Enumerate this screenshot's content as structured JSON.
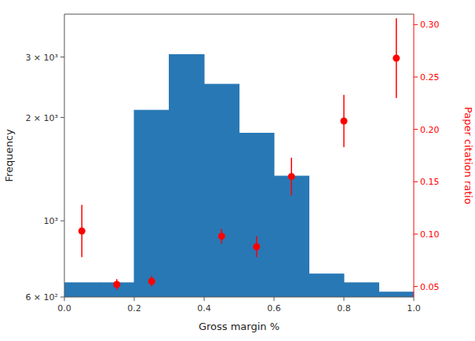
{
  "chart_data": {
    "type": "bar",
    "xlabel": "Gross margin %",
    "ylabel": "Frequency",
    "y2label": "Paper citation ratio",
    "log": "y",
    "grid": false,
    "xlim": [
      0.0,
      1.0
    ],
    "ylim": [
      600,
      4000
    ],
    "y2lim": [
      0.04,
      0.31
    ],
    "xticks": [
      {
        "value": 0.0,
        "label": "0.0"
      },
      0.2,
      0.4,
      0.6,
      0.8,
      {
        "value": 1.0,
        "label": "1.0"
      }
    ],
    "yticks": [
      {
        "value": 600,
        "label": "6 × 10²"
      },
      {
        "value": 1000,
        "label": "10³"
      },
      {
        "value": 2000,
        "label": "2 × 10³"
      },
      {
        "value": 3000,
        "label": "3 × 10³"
      }
    ],
    "y2ticks": [
      0.05,
      {
        "value": 0.1,
        "label": "0.10"
      },
      0.15,
      {
        "value": 0.2,
        "label": "0.20"
      },
      0.25,
      {
        "value": 0.3,
        "label": "0.30"
      }
    ],
    "series": [
      {
        "type": "histogram",
        "color": "#2878b5",
        "bins": [
          0.0,
          0.1,
          0.2,
          0.3,
          0.4,
          0.5,
          0.6,
          0.7,
          0.8,
          0.9,
          1.0
        ],
        "values": [
          660,
          660,
          2100,
          3050,
          2500,
          1800,
          1350,
          700,
          660,
          620
        ]
      },
      {
        "type": "scatter",
        "axis": "y2",
        "color": "red",
        "marker": "circle",
        "x": [
          0.05,
          0.15,
          0.25,
          0.45,
          0.55,
          0.65,
          0.8,
          0.95
        ],
        "values": [
          0.103,
          0.052,
          0.055,
          0.098,
          0.088,
          0.155,
          0.208,
          0.268
        ],
        "error_low": [
          0.025,
          0.005,
          0.005,
          0.007,
          0.01,
          0.018,
          0.025,
          0.038
        ],
        "error_high": [
          0.025,
          0.005,
          0.005,
          0.007,
          0.01,
          0.018,
          0.025,
          0.038
        ]
      }
    ]
  }
}
